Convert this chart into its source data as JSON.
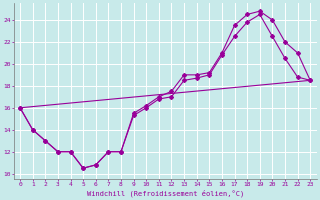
{
  "xlabel": "Windchill (Refroidissement éolien,°C)",
  "bg_color": "#c8eaea",
  "grid_color": "#ffffff",
  "line_color": "#990099",
  "xlim": [
    -0.5,
    23.5
  ],
  "ylim": [
    9.5,
    25.5
  ],
  "yticks": [
    10,
    12,
    14,
    16,
    18,
    20,
    22,
    24
  ],
  "xticks": [
    0,
    1,
    2,
    3,
    4,
    5,
    6,
    7,
    8,
    9,
    10,
    11,
    12,
    13,
    14,
    15,
    16,
    17,
    18,
    19,
    20,
    21,
    22,
    23
  ],
  "line1_x": [
    0,
    1,
    2,
    3,
    4,
    5,
    6,
    7,
    8,
    9,
    10,
    11,
    12,
    13,
    14,
    15,
    16,
    17,
    18,
    19,
    20,
    21,
    22,
    23
  ],
  "line1_y": [
    16,
    14,
    13,
    12,
    12,
    10.5,
    10.8,
    12,
    12,
    15.5,
    16.2,
    17,
    17.5,
    19,
    19,
    19.2,
    21,
    23.5,
    24.5,
    24.8,
    24,
    22,
    21,
    18.5
  ],
  "line2_x": [
    0,
    1,
    2,
    3,
    4,
    5,
    6,
    7,
    8,
    9,
    10,
    11,
    12,
    13,
    14,
    15,
    16,
    17,
    18,
    19,
    20,
    21,
    22,
    23
  ],
  "line2_y": [
    16,
    14,
    13,
    12,
    12,
    10.5,
    10.8,
    12,
    12,
    15.3,
    16,
    16.8,
    17.0,
    18.5,
    18.7,
    19.0,
    20.8,
    22.5,
    23.8,
    24.5,
    22.5,
    20.5,
    18.8,
    18.5
  ],
  "line3_x": [
    0,
    23
  ],
  "line3_y": [
    16,
    18.5
  ]
}
